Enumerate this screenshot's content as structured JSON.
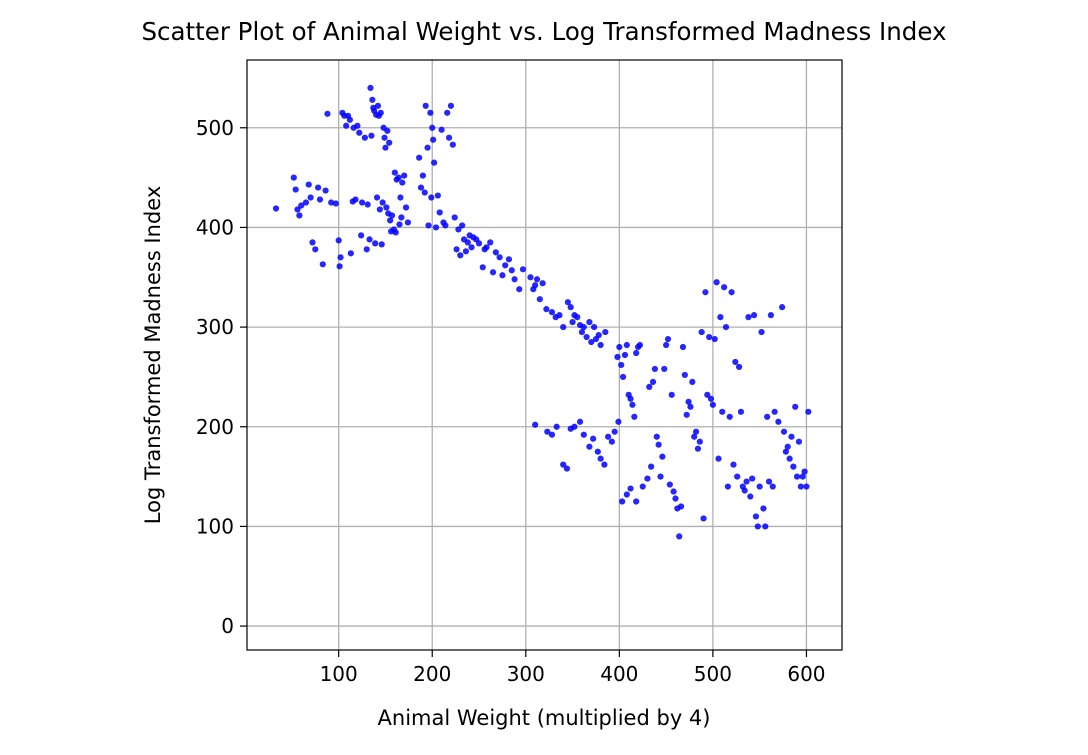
{
  "chart_data": {
    "type": "scatter",
    "title": "Scatter Plot of Animal Weight vs. Log Transformed Madness Index",
    "xlabel": "Animal Weight (multiplied by 4)",
    "ylabel": "Log Transformed Madness Index",
    "xlim": [
      2,
      638
    ],
    "ylim": [
      -24,
      568
    ],
    "xticks": [
      100,
      200,
      300,
      400,
      500,
      600
    ],
    "yticks": [
      0,
      100,
      200,
      300,
      400,
      500
    ],
    "grid": true,
    "marker_color": "#0000ff",
    "series": [
      {
        "points": [
          [
            33,
            419
          ],
          [
            52,
            450
          ],
          [
            54,
            438
          ],
          [
            56,
            418
          ],
          [
            58,
            412
          ],
          [
            60,
            422
          ],
          [
            65,
            425
          ],
          [
            68,
            443
          ],
          [
            70,
            430
          ],
          [
            72,
            385
          ],
          [
            75,
            378
          ],
          [
            78,
            440
          ],
          [
            80,
            428
          ],
          [
            83,
            363
          ],
          [
            86,
            437
          ],
          [
            88,
            514
          ],
          [
            92,
            425
          ],
          [
            97,
            424
          ],
          [
            100,
            387
          ],
          [
            101,
            361
          ],
          [
            102,
            370
          ],
          [
            104,
            515
          ],
          [
            106,
            512
          ],
          [
            108,
            502
          ],
          [
            110,
            512
          ],
          [
            112,
            508
          ],
          [
            113,
            374
          ],
          [
            115,
            426
          ],
          [
            116,
            500
          ],
          [
            118,
            428
          ],
          [
            120,
            502
          ],
          [
            122,
            495
          ],
          [
            124,
            392
          ],
          [
            125,
            425
          ],
          [
            128,
            490
          ],
          [
            130,
            378
          ],
          [
            131,
            423
          ],
          [
            133,
            388
          ],
          [
            134,
            540
          ],
          [
            135,
            492
          ],
          [
            136,
            528
          ],
          [
            137,
            520
          ],
          [
            138,
            517
          ],
          [
            139,
            384
          ],
          [
            140,
            513
          ],
          [
            141,
            430
          ],
          [
            142,
            522
          ],
          [
            143,
            512
          ],
          [
            144,
            418
          ],
          [
            145,
            515
          ],
          [
            146,
            383
          ],
          [
            147,
            425
          ],
          [
            148,
            500
          ],
          [
            149,
            490
          ],
          [
            150,
            480
          ],
          [
            151,
            420
          ],
          [
            152,
            497
          ],
          [
            153,
            414
          ],
          [
            154,
            485
          ],
          [
            155,
            407
          ],
          [
            156,
            396
          ],
          [
            157,
            412
          ],
          [
            159,
            398
          ],
          [
            160,
            455
          ],
          [
            161,
            395
          ],
          [
            162,
            448
          ],
          [
            164,
            450
          ],
          [
            165,
            403
          ],
          [
            166,
            430
          ],
          [
            167,
            410
          ],
          [
            168,
            445
          ],
          [
            170,
            452
          ],
          [
            172,
            420
          ],
          [
            174,
            405
          ],
          [
            186,
            470
          ],
          [
            188,
            440
          ],
          [
            190,
            452
          ],
          [
            192,
            435
          ],
          [
            193,
            522
          ],
          [
            195,
            480
          ],
          [
            196,
            402
          ],
          [
            198,
            515
          ],
          [
            199,
            430
          ],
          [
            200,
            500
          ],
          [
            201,
            488
          ],
          [
            202,
            465
          ],
          [
            204,
            400
          ],
          [
            206,
            432
          ],
          [
            208,
            415
          ],
          [
            210,
            498
          ],
          [
            212,
            405
          ],
          [
            214,
            402
          ],
          [
            216,
            515
          ],
          [
            218,
            490
          ],
          [
            220,
            522
          ],
          [
            222,
            483
          ],
          [
            224,
            410
          ],
          [
            226,
            378
          ],
          [
            228,
            398
          ],
          [
            230,
            372
          ],
          [
            232,
            402
          ],
          [
            234,
            388
          ],
          [
            236,
            376
          ],
          [
            238,
            385
          ],
          [
            240,
            392
          ],
          [
            242,
            380
          ],
          [
            244,
            390
          ],
          [
            247,
            388
          ],
          [
            250,
            384
          ],
          [
            254,
            360
          ],
          [
            256,
            378
          ],
          [
            258,
            380
          ],
          [
            262,
            385
          ],
          [
            265,
            355
          ],
          [
            268,
            375
          ],
          [
            272,
            370
          ],
          [
            275,
            352
          ],
          [
            278,
            362
          ],
          [
            282,
            368
          ],
          [
            285,
            357
          ],
          [
            288,
            348
          ],
          [
            293,
            338
          ],
          [
            297,
            358
          ],
          [
            305,
            350
          ],
          [
            308,
            338
          ],
          [
            310,
            342
          ],
          [
            312,
            348
          ],
          [
            315,
            328
          ],
          [
            318,
            344
          ],
          [
            322,
            318
          ],
          [
            328,
            315
          ],
          [
            332,
            310
          ],
          [
            336,
            312
          ],
          [
            340,
            300
          ],
          [
            345,
            325
          ],
          [
            348,
            320
          ],
          [
            350,
            305
          ],
          [
            352,
            312
          ],
          [
            355,
            310
          ],
          [
            358,
            302
          ],
          [
            360,
            295
          ],
          [
            362,
            300
          ],
          [
            365,
            290
          ],
          [
            368,
            305
          ],
          [
            370,
            285
          ],
          [
            373,
            300
          ],
          [
            375,
            288
          ],
          [
            378,
            292
          ],
          [
            380,
            282
          ],
          [
            385,
            295
          ],
          [
            398,
            270
          ],
          [
            400,
            280
          ],
          [
            402,
            262
          ],
          [
            404,
            250
          ],
          [
            406,
            272
          ],
          [
            408,
            282
          ],
          [
            410,
            232
          ],
          [
            412,
            228
          ],
          [
            414,
            222
          ],
          [
            416,
            210
          ],
          [
            418,
            274
          ],
          [
            420,
            280
          ],
          [
            422,
            282
          ],
          [
            310,
            202
          ],
          [
            323,
            195
          ],
          [
            328,
            192
          ],
          [
            333,
            200
          ],
          [
            340,
            162
          ],
          [
            344,
            158
          ],
          [
            348,
            198
          ],
          [
            352,
            200
          ],
          [
            358,
            205
          ],
          [
            362,
            192
          ],
          [
            368,
            180
          ],
          [
            372,
            188
          ],
          [
            377,
            175
          ],
          [
            380,
            168
          ],
          [
            384,
            162
          ],
          [
            388,
            190
          ],
          [
            392,
            185
          ],
          [
            395,
            195
          ],
          [
            399,
            205
          ],
          [
            403,
            125
          ],
          [
            408,
            132
          ],
          [
            412,
            138
          ],
          [
            418,
            125
          ],
          [
            425,
            140
          ],
          [
            430,
            148
          ],
          [
            432,
            240
          ],
          [
            434,
            160
          ],
          [
            436,
            245
          ],
          [
            438,
            258
          ],
          [
            440,
            190
          ],
          [
            442,
            182
          ],
          [
            444,
            150
          ],
          [
            446,
            170
          ],
          [
            448,
            258
          ],
          [
            450,
            282
          ],
          [
            452,
            288
          ],
          [
            454,
            142
          ],
          [
            456,
            232
          ],
          [
            458,
            135
          ],
          [
            460,
            128
          ],
          [
            462,
            118
          ],
          [
            464,
            90
          ],
          [
            466,
            120
          ],
          [
            468,
            280
          ],
          [
            470,
            252
          ],
          [
            472,
            212
          ],
          [
            474,
            225
          ],
          [
            476,
            220
          ],
          [
            478,
            245
          ],
          [
            480,
            190
          ],
          [
            482,
            195
          ],
          [
            484,
            178
          ],
          [
            486,
            185
          ],
          [
            488,
            295
          ],
          [
            490,
            108
          ],
          [
            492,
            335
          ],
          [
            494,
            232
          ],
          [
            496,
            290
          ],
          [
            498,
            228
          ],
          [
            500,
            222
          ],
          [
            502,
            288
          ],
          [
            504,
            345
          ],
          [
            506,
            168
          ],
          [
            508,
            310
          ],
          [
            510,
            215
          ],
          [
            512,
            340
          ],
          [
            514,
            300
          ],
          [
            516,
            140
          ],
          [
            518,
            210
          ],
          [
            520,
            335
          ],
          [
            522,
            162
          ],
          [
            524,
            265
          ],
          [
            526,
            150
          ],
          [
            528,
            260
          ],
          [
            530,
            215
          ],
          [
            532,
            140
          ],
          [
            534,
            136
          ],
          [
            536,
            145
          ],
          [
            538,
            310
          ],
          [
            540,
            130
          ],
          [
            542,
            148
          ],
          [
            544,
            312
          ],
          [
            546,
            110
          ],
          [
            548,
            100
          ],
          [
            550,
            140
          ],
          [
            552,
            295
          ],
          [
            554,
            118
          ],
          [
            556,
            100
          ],
          [
            558,
            210
          ],
          [
            560,
            145
          ],
          [
            562,
            312
          ],
          [
            564,
            140
          ],
          [
            566,
            215
          ],
          [
            570,
            205
          ],
          [
            574,
            320
          ],
          [
            576,
            195
          ],
          [
            578,
            175
          ],
          [
            580,
            180
          ],
          [
            582,
            168
          ],
          [
            584,
            190
          ],
          [
            586,
            160
          ],
          [
            588,
            220
          ],
          [
            590,
            150
          ],
          [
            592,
            185
          ],
          [
            594,
            140
          ],
          [
            596,
            150
          ],
          [
            598,
            155
          ],
          [
            600,
            140
          ],
          [
            602,
            215
          ]
        ]
      }
    ]
  }
}
